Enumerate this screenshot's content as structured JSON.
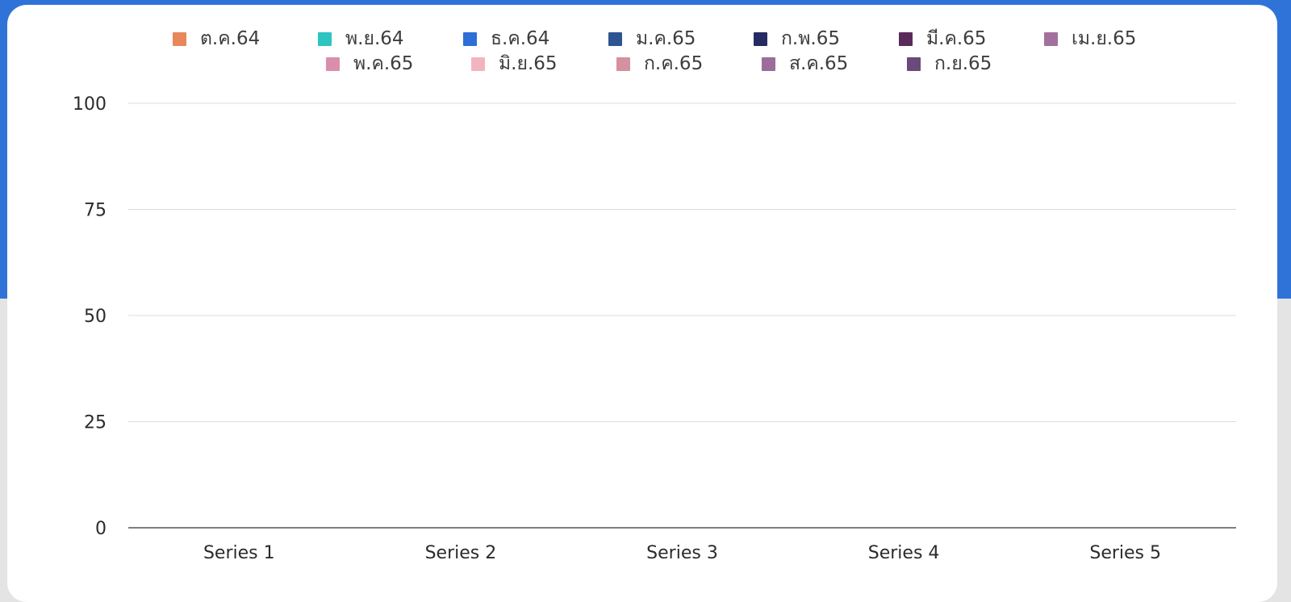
{
  "chart_data": {
    "type": "bar",
    "title": "",
    "xlabel": "",
    "ylabel": "",
    "categories": [
      "Series 1",
      "Series 2",
      "Series 3",
      "Series 4",
      "Series 5"
    ],
    "ylim": [
      0,
      100
    ],
    "yticks": [
      "0",
      "25",
      "50",
      "75",
      "100"
    ],
    "grid": true,
    "legend_position": "top",
    "series": [
      {
        "name": "ต.ค.64",
        "color": "#e8875a",
        "values": [
          0,
          0,
          0,
          0,
          0
        ]
      },
      {
        "name": "พ.ย.64",
        "color": "#2ec4c0",
        "values": [
          0,
          0,
          0,
          0,
          0
        ]
      },
      {
        "name": "ธ.ค.64",
        "color": "#2c6fd6",
        "values": [
          0,
          0,
          0,
          0,
          0
        ]
      },
      {
        "name": "ม.ค.65",
        "color": "#2e5592",
        "values": [
          0,
          0,
          0,
          0,
          0
        ]
      },
      {
        "name": "ก.พ.65",
        "color": "#272b63",
        "values": [
          0,
          0,
          0,
          0,
          0
        ]
      },
      {
        "name": "มี.ค.65",
        "color": "#5a2a5a",
        "values": [
          0,
          0,
          0,
          0,
          0
        ]
      },
      {
        "name": "เม.ย.65",
        "color": "#a3709d",
        "values": [
          0,
          0,
          0,
          0,
          0
        ]
      },
      {
        "name": "พ.ค.65",
        "color": "#d98fac",
        "values": [
          0,
          0,
          0,
          0,
          0
        ]
      },
      {
        "name": "มิ.ย.65",
        "color": "#f3b4bf",
        "values": [
          0,
          0,
          0,
          0,
          0
        ]
      },
      {
        "name": "ก.ค.65",
        "color": "#d391a2",
        "values": [
          0,
          0,
          0,
          0,
          0
        ]
      },
      {
        "name": "ส.ค.65",
        "color": "#9c6c9b",
        "values": [
          0,
          0,
          0,
          0,
          0
        ]
      },
      {
        "name": "ก.ย.65",
        "color": "#6a4a7a",
        "values": [
          0,
          0,
          0,
          0,
          0
        ]
      }
    ]
  }
}
